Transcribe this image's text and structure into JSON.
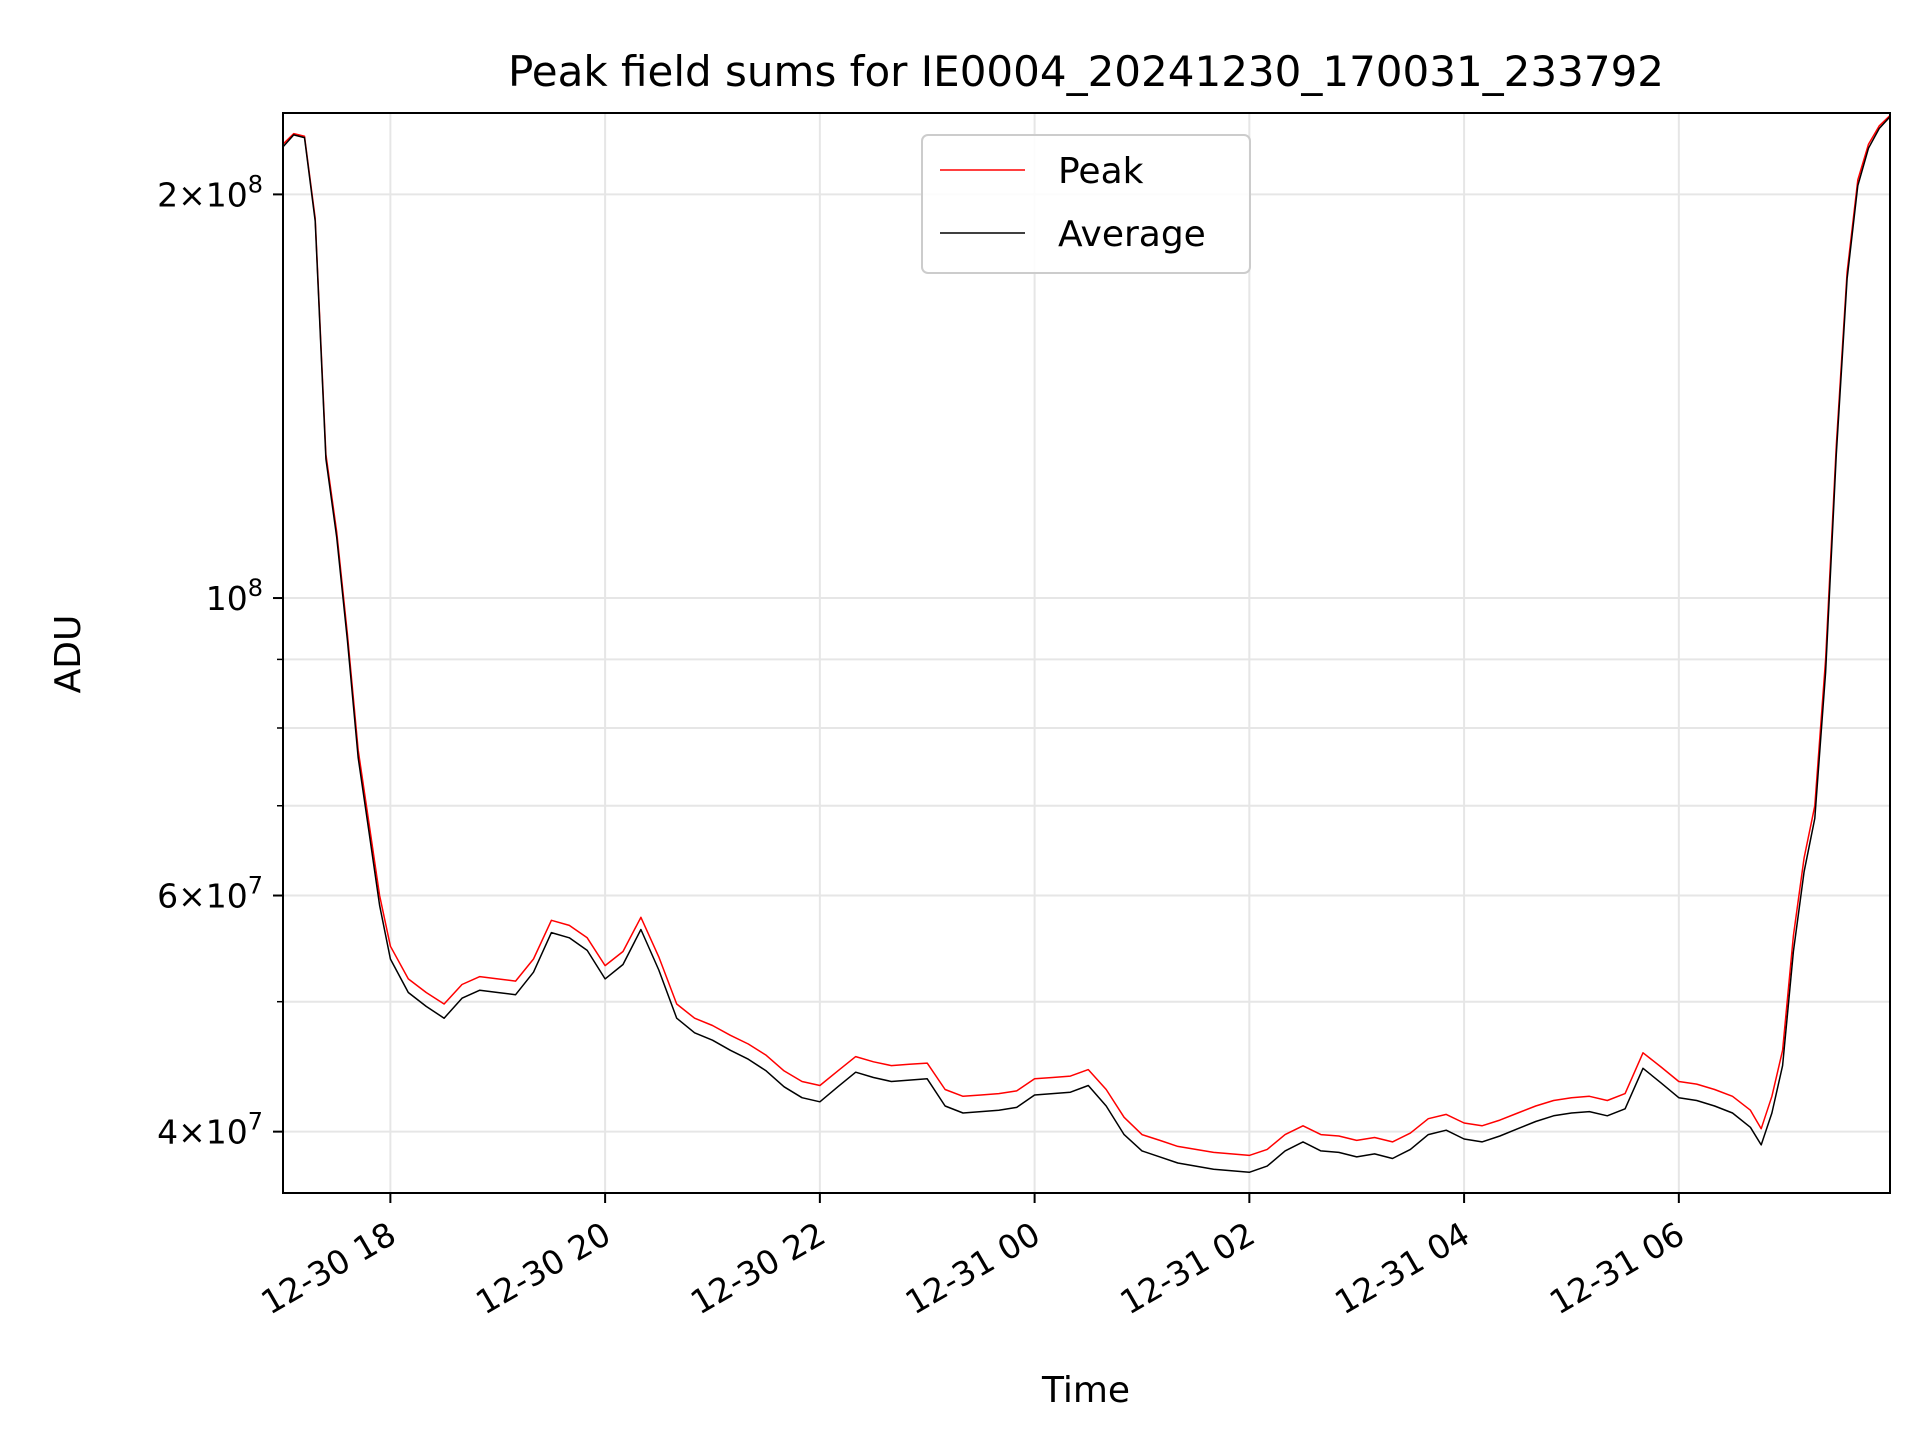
{
  "chart_data": {
    "type": "line",
    "title": "Peak field sums for IE0004_20241230_170031_233792",
    "xlabel": "Time",
    "ylabel": "ADU",
    "y_scale": "log",
    "ylim": [
      36000000,
      230000000
    ],
    "xlim": [
      "2024-12-30T17:00",
      "2024-12-31T07:58"
    ],
    "grid": true,
    "legend_position": "top-center",
    "x_ticks": [
      {
        "label": "12-30 18",
        "x": "2024-12-30T18:00"
      },
      {
        "label": "12-30 20",
        "x": "2024-12-30T20:00"
      },
      {
        "label": "12-30 22",
        "x": "2024-12-30T22:00"
      },
      {
        "label": "12-31 00",
        "x": "2024-12-31T00:00"
      },
      {
        "label": "12-31 02",
        "x": "2024-12-31T02:00"
      },
      {
        "label": "12-31 04",
        "x": "2024-12-31T04:00"
      },
      {
        "label": "12-31 06",
        "x": "2024-12-31T06:00"
      }
    ],
    "y_major_ticks": [
      {
        "value": 40000000,
        "mantissa": "4",
        "exponent": "7"
      },
      {
        "value": 60000000,
        "mantissa": "6",
        "exponent": "7"
      },
      {
        "value": 100000000,
        "mantissa": "",
        "exponent": "8"
      },
      {
        "value": 200000000,
        "mantissa": "2",
        "exponent": "8"
      }
    ],
    "y_minor_grid": [
      50000000,
      70000000,
      80000000,
      90000000
    ],
    "series": [
      {
        "name": "Peak",
        "color": "#ff0000",
        "points": [
          [
            "2024-12-30T17:00",
            218000000
          ],
          [
            "2024-12-30T17:06",
            222000000
          ],
          [
            "2024-12-30T17:12",
            221000000
          ],
          [
            "2024-12-30T17:18",
            192000000
          ],
          [
            "2024-12-30T17:24",
            128000000
          ],
          [
            "2024-12-30T17:30",
            112000000
          ],
          [
            "2024-12-30T17:36",
            94000000
          ],
          [
            "2024-12-30T17:42",
            77000000
          ],
          [
            "2024-12-30T17:48",
            68000000
          ],
          [
            "2024-12-30T17:54",
            60000000
          ],
          [
            "2024-12-30T18:00",
            55000000
          ],
          [
            "2024-12-30T18:10",
            52000000
          ],
          [
            "2024-12-30T18:20",
            50800000
          ],
          [
            "2024-12-30T18:30",
            49800000
          ],
          [
            "2024-12-30T18:40",
            51500000
          ],
          [
            "2024-12-30T18:50",
            52200000
          ],
          [
            "2024-12-30T19:00",
            52000000
          ],
          [
            "2024-12-30T19:10",
            51800000
          ],
          [
            "2024-12-30T19:20",
            53800000
          ],
          [
            "2024-12-30T19:30",
            57500000
          ],
          [
            "2024-12-30T19:40",
            57000000
          ],
          [
            "2024-12-30T19:50",
            55800000
          ],
          [
            "2024-12-30T20:00",
            53200000
          ],
          [
            "2024-12-30T20:10",
            54500000
          ],
          [
            "2024-12-30T20:20",
            57800000
          ],
          [
            "2024-12-30T20:30",
            54000000
          ],
          [
            "2024-12-30T20:40",
            49800000
          ],
          [
            "2024-12-30T20:50",
            48600000
          ],
          [
            "2024-12-30T21:00",
            48000000
          ],
          [
            "2024-12-30T21:10",
            47200000
          ],
          [
            "2024-12-30T21:20",
            46500000
          ],
          [
            "2024-12-30T21:30",
            45600000
          ],
          [
            "2024-12-30T21:40",
            44400000
          ],
          [
            "2024-12-30T21:50",
            43600000
          ],
          [
            "2024-12-30T22:00",
            43300000
          ],
          [
            "2024-12-30T22:10",
            44400000
          ],
          [
            "2024-12-30T22:20",
            45500000
          ],
          [
            "2024-12-30T22:30",
            45100000
          ],
          [
            "2024-12-30T22:40",
            44800000
          ],
          [
            "2024-12-30T22:50",
            44900000
          ],
          [
            "2024-12-30T23:00",
            45000000
          ],
          [
            "2024-12-30T23:10",
            43000000
          ],
          [
            "2024-12-30T23:20",
            42500000
          ],
          [
            "2024-12-30T23:30",
            42600000
          ],
          [
            "2024-12-30T23:40",
            42700000
          ],
          [
            "2024-12-30T23:50",
            42900000
          ],
          [
            "2024-12-31T00:00",
            43800000
          ],
          [
            "2024-12-31T00:10",
            43900000
          ],
          [
            "2024-12-31T00:20",
            44000000
          ],
          [
            "2024-12-31T00:30",
            44500000
          ],
          [
            "2024-12-31T00:40",
            43000000
          ],
          [
            "2024-12-31T00:50",
            41000000
          ],
          [
            "2024-12-31T01:00",
            39800000
          ],
          [
            "2024-12-31T01:10",
            39400000
          ],
          [
            "2024-12-31T01:20",
            39000000
          ],
          [
            "2024-12-31T01:30",
            38800000
          ],
          [
            "2024-12-31T01:40",
            38600000
          ],
          [
            "2024-12-31T01:50",
            38500000
          ],
          [
            "2024-12-31T02:00",
            38400000
          ],
          [
            "2024-12-31T02:10",
            38800000
          ],
          [
            "2024-12-31T02:20",
            39800000
          ],
          [
            "2024-12-31T02:30",
            40400000
          ],
          [
            "2024-12-31T02:40",
            39800000
          ],
          [
            "2024-12-31T02:50",
            39700000
          ],
          [
            "2024-12-31T03:00",
            39400000
          ],
          [
            "2024-12-31T03:10",
            39600000
          ],
          [
            "2024-12-31T03:20",
            39300000
          ],
          [
            "2024-12-31T03:30",
            39900000
          ],
          [
            "2024-12-31T03:40",
            40900000
          ],
          [
            "2024-12-31T03:50",
            41200000
          ],
          [
            "2024-12-31T04:00",
            40600000
          ],
          [
            "2024-12-31T04:10",
            40400000
          ],
          [
            "2024-12-31T04:20",
            40800000
          ],
          [
            "2024-12-31T04:30",
            41300000
          ],
          [
            "2024-12-31T04:40",
            41800000
          ],
          [
            "2024-12-31T04:50",
            42200000
          ],
          [
            "2024-12-31T05:00",
            42400000
          ],
          [
            "2024-12-31T05:10",
            42500000
          ],
          [
            "2024-12-31T05:20",
            42200000
          ],
          [
            "2024-12-31T05:30",
            42700000
          ],
          [
            "2024-12-31T05:40",
            45800000
          ],
          [
            "2024-12-31T05:50",
            44700000
          ],
          [
            "2024-12-31T06:00",
            43600000
          ],
          [
            "2024-12-31T06:10",
            43400000
          ],
          [
            "2024-12-31T06:20",
            43000000
          ],
          [
            "2024-12-31T06:30",
            42500000
          ],
          [
            "2024-12-31T06:40",
            41500000
          ],
          [
            "2024-12-31T06:46",
            40200000
          ],
          [
            "2024-12-31T06:52",
            42500000
          ],
          [
            "2024-12-31T06:58",
            46000000
          ],
          [
            "2024-12-31T07:04",
            56000000
          ],
          [
            "2024-12-31T07:10",
            64000000
          ],
          [
            "2024-12-31T07:16",
            70000000
          ],
          [
            "2024-12-31T07:22",
            90000000
          ],
          [
            "2024-12-31T07:28",
            130000000
          ],
          [
            "2024-12-31T07:34",
            175000000
          ],
          [
            "2024-12-31T07:40",
            205000000
          ],
          [
            "2024-12-31T07:46",
            218000000
          ],
          [
            "2024-12-31T07:52",
            225000000
          ],
          [
            "2024-12-31T07:58",
            229000000
          ]
        ]
      },
      {
        "name": "Average",
        "color": "#000000",
        "points": [
          [
            "2024-12-30T17:00",
            217000000
          ],
          [
            "2024-12-30T17:06",
            221500000
          ],
          [
            "2024-12-30T17:12",
            220500000
          ],
          [
            "2024-12-30T17:18",
            191000000
          ],
          [
            "2024-12-30T17:24",
            127000000
          ],
          [
            "2024-12-30T17:30",
            111000000
          ],
          [
            "2024-12-30T17:36",
            93000000
          ],
          [
            "2024-12-30T17:42",
            76000000
          ],
          [
            "2024-12-30T17:48",
            67000000
          ],
          [
            "2024-12-30T17:54",
            59000000
          ],
          [
            "2024-12-30T18:00",
            53800000
          ],
          [
            "2024-12-30T18:10",
            50800000
          ],
          [
            "2024-12-30T18:20",
            49600000
          ],
          [
            "2024-12-30T18:30",
            48600000
          ],
          [
            "2024-12-30T18:40",
            50300000
          ],
          [
            "2024-12-30T18:50",
            51000000
          ],
          [
            "2024-12-30T19:00",
            50800000
          ],
          [
            "2024-12-30T19:10",
            50600000
          ],
          [
            "2024-12-30T19:20",
            52600000
          ],
          [
            "2024-12-30T19:30",
            56300000
          ],
          [
            "2024-12-30T19:40",
            55800000
          ],
          [
            "2024-12-30T19:50",
            54600000
          ],
          [
            "2024-12-30T20:00",
            52000000
          ],
          [
            "2024-12-30T20:10",
            53300000
          ],
          [
            "2024-12-30T20:20",
            56600000
          ],
          [
            "2024-12-30T20:30",
            52800000
          ],
          [
            "2024-12-30T20:40",
            48600000
          ],
          [
            "2024-12-30T20:50",
            47400000
          ],
          [
            "2024-12-30T21:00",
            46800000
          ],
          [
            "2024-12-30T21:10",
            46000000
          ],
          [
            "2024-12-30T21:20",
            45300000
          ],
          [
            "2024-12-30T21:30",
            44400000
          ],
          [
            "2024-12-30T21:40",
            43200000
          ],
          [
            "2024-12-30T21:50",
            42400000
          ],
          [
            "2024-12-30T22:00",
            42100000
          ],
          [
            "2024-12-30T22:10",
            43200000
          ],
          [
            "2024-12-30T22:20",
            44300000
          ],
          [
            "2024-12-30T22:30",
            43900000
          ],
          [
            "2024-12-30T22:40",
            43600000
          ],
          [
            "2024-12-30T22:50",
            43700000
          ],
          [
            "2024-12-30T23:00",
            43800000
          ],
          [
            "2024-12-30T23:10",
            41800000
          ],
          [
            "2024-12-30T23:20",
            41300000
          ],
          [
            "2024-12-30T23:30",
            41400000
          ],
          [
            "2024-12-30T23:40",
            41500000
          ],
          [
            "2024-12-30T23:50",
            41700000
          ],
          [
            "2024-12-31T00:00",
            42600000
          ],
          [
            "2024-12-31T00:10",
            42700000
          ],
          [
            "2024-12-31T00:20",
            42800000
          ],
          [
            "2024-12-31T00:30",
            43300000
          ],
          [
            "2024-12-31T00:40",
            41800000
          ],
          [
            "2024-12-31T00:50",
            39800000
          ],
          [
            "2024-12-31T01:00",
            38700000
          ],
          [
            "2024-12-31T01:10",
            38300000
          ],
          [
            "2024-12-31T01:20",
            37900000
          ],
          [
            "2024-12-31T01:30",
            37700000
          ],
          [
            "2024-12-31T01:40",
            37500000
          ],
          [
            "2024-12-31T01:50",
            37400000
          ],
          [
            "2024-12-31T02:00",
            37300000
          ],
          [
            "2024-12-31T02:10",
            37700000
          ],
          [
            "2024-12-31T02:20",
            38700000
          ],
          [
            "2024-12-31T02:30",
            39300000
          ],
          [
            "2024-12-31T02:40",
            38700000
          ],
          [
            "2024-12-31T02:50",
            38600000
          ],
          [
            "2024-12-31T03:00",
            38300000
          ],
          [
            "2024-12-31T03:10",
            38500000
          ],
          [
            "2024-12-31T03:20",
            38200000
          ],
          [
            "2024-12-31T03:30",
            38800000
          ],
          [
            "2024-12-31T03:40",
            39800000
          ],
          [
            "2024-12-31T03:50",
            40100000
          ],
          [
            "2024-12-31T04:00",
            39500000
          ],
          [
            "2024-12-31T04:10",
            39300000
          ],
          [
            "2024-12-31T04:20",
            39700000
          ],
          [
            "2024-12-31T04:30",
            40200000
          ],
          [
            "2024-12-31T04:40",
            40700000
          ],
          [
            "2024-12-31T04:50",
            41100000
          ],
          [
            "2024-12-31T05:00",
            41300000
          ],
          [
            "2024-12-31T05:10",
            41400000
          ],
          [
            "2024-12-31T05:20",
            41100000
          ],
          [
            "2024-12-31T05:30",
            41600000
          ],
          [
            "2024-12-31T05:40",
            44600000
          ],
          [
            "2024-12-31T05:50",
            43500000
          ],
          [
            "2024-12-31T06:00",
            42400000
          ],
          [
            "2024-12-31T06:10",
            42200000
          ],
          [
            "2024-12-31T06:20",
            41800000
          ],
          [
            "2024-12-31T06:30",
            41300000
          ],
          [
            "2024-12-31T06:40",
            40300000
          ],
          [
            "2024-12-31T06:46",
            39100000
          ],
          [
            "2024-12-31T06:52",
            41300000
          ],
          [
            "2024-12-31T06:58",
            44800000
          ],
          [
            "2024-12-31T07:04",
            54500000
          ],
          [
            "2024-12-31T07:10",
            62500000
          ],
          [
            "2024-12-31T07:16",
            68500000
          ],
          [
            "2024-12-31T07:22",
            88000000
          ],
          [
            "2024-12-31T07:28",
            128000000
          ],
          [
            "2024-12-31T07:34",
            173000000
          ],
          [
            "2024-12-31T07:40",
            203000000
          ],
          [
            "2024-12-31T07:46",
            216500000
          ],
          [
            "2024-12-31T07:52",
            224000000
          ],
          [
            "2024-12-31T07:58",
            228500000
          ]
        ]
      }
    ]
  }
}
